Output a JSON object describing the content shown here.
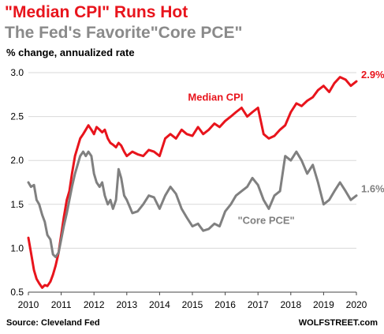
{
  "header": {
    "title": "\"Median CPI\" Runs Hot",
    "subtitle": "The Fed's Favorite\"Core PCE\"",
    "unit_label": "% change, annualized rate"
  },
  "footer": {
    "source": "Source: Cleveland Fed",
    "brand": "WOLFSTREET.com"
  },
  "colors": {
    "median_cpi": "#e8141c",
    "core_pce": "#808080",
    "grid": "#d9d9d9"
  },
  "chart_data": {
    "type": "line",
    "xlim": [
      2010,
      2020
    ],
    "ylim": [
      0.5,
      3.0
    ],
    "x_ticks": [
      "2010",
      "2011",
      "2012",
      "2013",
      "2014",
      "2015",
      "2016",
      "2017",
      "2018",
      "2019",
      "2020"
    ],
    "y_ticks": [
      "3.0",
      "2.5",
      "2.0",
      "1.5",
      "1.0",
      "0.5"
    ],
    "grid": "horizontal",
    "series": [
      {
        "name": "Median CPI",
        "label_text": "Median CPI",
        "end_label": "2.9%",
        "x": [
          2010.0,
          2010.08,
          2010.17,
          2010.25,
          2010.33,
          2010.42,
          2010.5,
          2010.58,
          2010.67,
          2010.75,
          2010.83,
          2010.92,
          2011.0,
          2011.08,
          2011.17,
          2011.25,
          2011.33,
          2011.42,
          2011.5,
          2011.58,
          2011.67,
          2011.75,
          2011.83,
          2011.92,
          2012.0,
          2012.08,
          2012.17,
          2012.25,
          2012.33,
          2012.42,
          2012.5,
          2012.58,
          2012.67,
          2012.75,
          2012.83,
          2012.92,
          2013.0,
          2013.17,
          2013.33,
          2013.5,
          2013.67,
          2013.83,
          2014.0,
          2014.17,
          2014.33,
          2014.5,
          2014.67,
          2014.83,
          2015.0,
          2015.17,
          2015.33,
          2015.5,
          2015.67,
          2015.83,
          2016.0,
          2016.17,
          2016.33,
          2016.5,
          2016.67,
          2016.83,
          2017.0,
          2017.17,
          2017.33,
          2017.5,
          2017.67,
          2017.83,
          2018.0,
          2018.17,
          2018.33,
          2018.5,
          2018.67,
          2018.83,
          2019.0,
          2019.17,
          2019.33,
          2019.5,
          2019.67,
          2019.83,
          2020.0
        ],
        "values": [
          1.12,
          0.95,
          0.75,
          0.65,
          0.6,
          0.55,
          0.58,
          0.57,
          0.62,
          0.7,
          0.8,
          0.95,
          1.15,
          1.35,
          1.55,
          1.65,
          1.85,
          2.05,
          2.15,
          2.25,
          2.3,
          2.35,
          2.4,
          2.35,
          2.3,
          2.38,
          2.35,
          2.32,
          2.35,
          2.25,
          2.2,
          2.18,
          2.15,
          2.2,
          2.17,
          2.1,
          2.05,
          2.1,
          2.07,
          2.05,
          2.12,
          2.1,
          2.05,
          2.25,
          2.3,
          2.25,
          2.35,
          2.3,
          2.28,
          2.38,
          2.3,
          2.35,
          2.42,
          2.38,
          2.45,
          2.5,
          2.55,
          2.6,
          2.5,
          2.55,
          2.6,
          2.3,
          2.25,
          2.28,
          2.35,
          2.4,
          2.55,
          2.65,
          2.62,
          2.68,
          2.72,
          2.8,
          2.85,
          2.78,
          2.88,
          2.95,
          2.92,
          2.85,
          2.9
        ]
      },
      {
        "name": "Core PCE",
        "label_text": "\"Core PCE\"",
        "end_label": "1.6%",
        "x": [
          2010.0,
          2010.08,
          2010.17,
          2010.25,
          2010.33,
          2010.42,
          2010.5,
          2010.58,
          2010.67,
          2010.75,
          2010.83,
          2010.92,
          2011.0,
          2011.08,
          2011.17,
          2011.25,
          2011.33,
          2011.42,
          2011.5,
          2011.58,
          2011.67,
          2011.75,
          2011.83,
          2011.92,
          2012.0,
          2012.08,
          2012.17,
          2012.25,
          2012.33,
          2012.42,
          2012.5,
          2012.58,
          2012.67,
          2012.75,
          2012.83,
          2012.92,
          2013.0,
          2013.17,
          2013.33,
          2013.5,
          2013.67,
          2013.83,
          2014.0,
          2014.17,
          2014.33,
          2014.5,
          2014.67,
          2014.83,
          2015.0,
          2015.17,
          2015.33,
          2015.5,
          2015.67,
          2015.83,
          2016.0,
          2016.17,
          2016.33,
          2016.5,
          2016.67,
          2016.83,
          2017.0,
          2017.17,
          2017.33,
          2017.5,
          2017.67,
          2017.83,
          2018.0,
          2018.17,
          2018.33,
          2018.5,
          2018.67,
          2018.83,
          2019.0,
          2019.17,
          2019.33,
          2019.5,
          2019.67,
          2019.83,
          2020.0
        ],
        "values": [
          1.75,
          1.7,
          1.72,
          1.55,
          1.5,
          1.38,
          1.3,
          1.15,
          1.1,
          0.93,
          0.9,
          0.95,
          1.1,
          1.25,
          1.4,
          1.55,
          1.7,
          1.85,
          1.95,
          2.05,
          2.1,
          2.05,
          2.1,
          2.05,
          1.85,
          1.75,
          1.7,
          1.75,
          1.6,
          1.5,
          1.55,
          1.45,
          1.55,
          1.9,
          1.8,
          1.6,
          1.55,
          1.4,
          1.42,
          1.5,
          1.6,
          1.58,
          1.45,
          1.6,
          1.7,
          1.62,
          1.45,
          1.35,
          1.25,
          1.28,
          1.2,
          1.22,
          1.28,
          1.25,
          1.42,
          1.5,
          1.6,
          1.65,
          1.7,
          1.8,
          1.72,
          1.55,
          1.45,
          1.6,
          1.65,
          2.05,
          2.0,
          2.1,
          2.0,
          1.85,
          1.95,
          1.75,
          1.5,
          1.55,
          1.65,
          1.75,
          1.65,
          1.55,
          1.6
        ]
      }
    ]
  }
}
